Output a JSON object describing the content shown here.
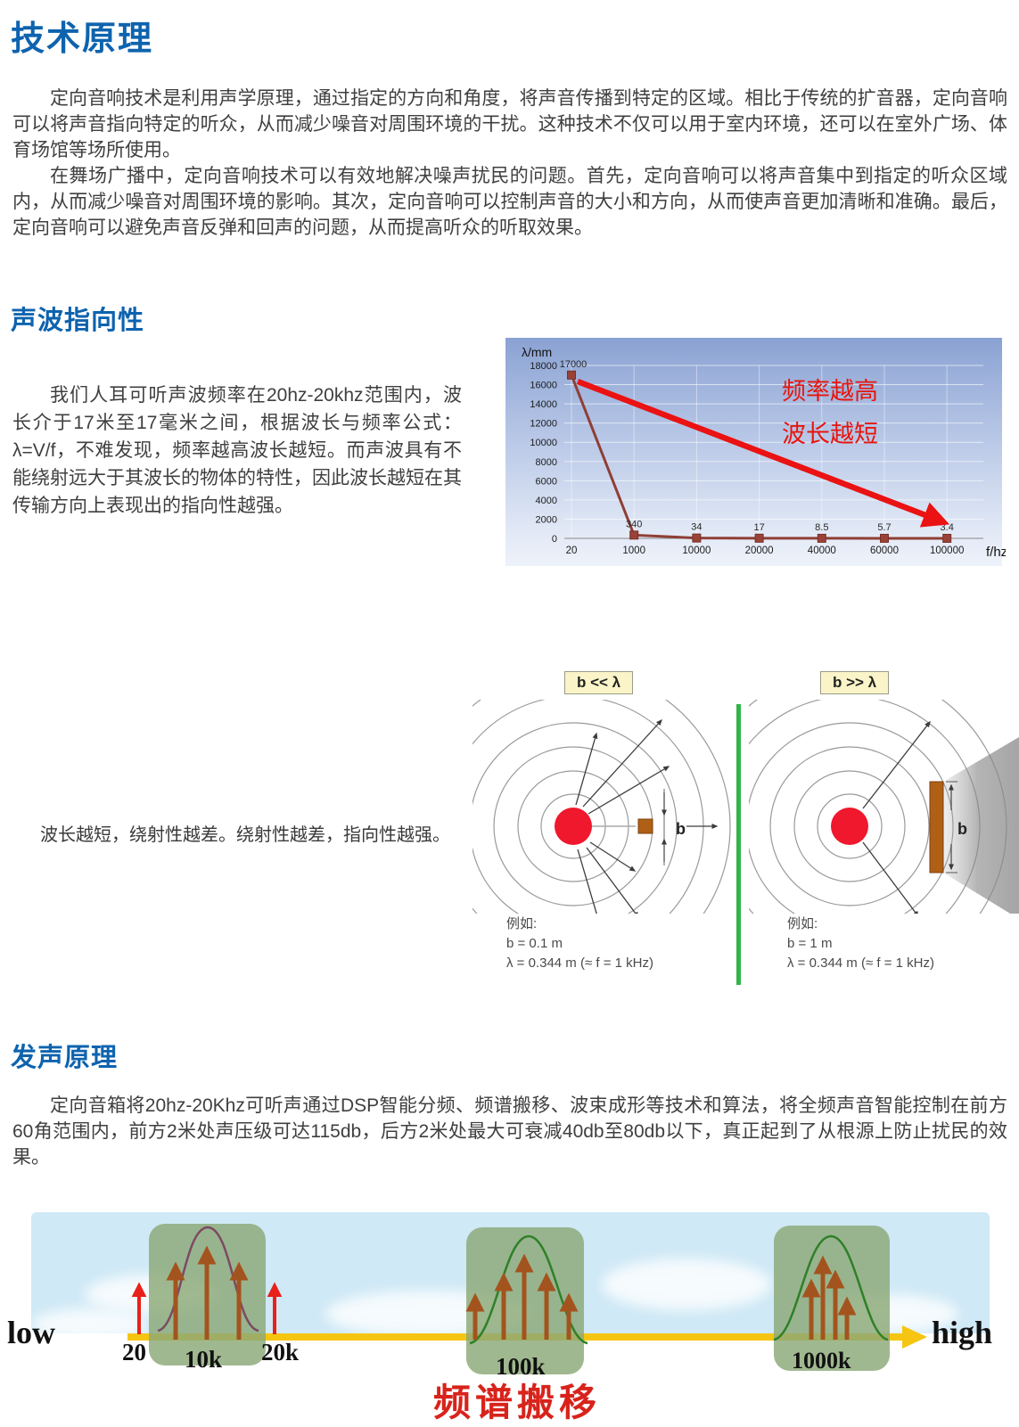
{
  "header": {
    "title": "技术原理"
  },
  "intro": {
    "p1": "定向音响技术是利用声学原理，通过指定的方向和角度，将声音传播到特定的区域。相比于传统的扩音器，定向音响可以将声音指向特定的听众，从而减少噪音对周围环境的干扰。这种技术不仅可以用于室内环境，还可以在室外广场、体育场馆等场所使用。",
    "p2": "在舞场广播中，定向音响技术可以有效地解决噪声扰民的问题。首先，定向音响可以将声音集中到指定的听众区域内，从而减少噪音对周围环境的影响。其次，定向音响可以控制声音的大小和方向，从而使声音更加清晰和准确。最后，定向音响可以避免声音反弹和回声的问题，从而提高听众的听取效果。"
  },
  "wave_section": {
    "title": "声波指向性",
    "body": "我们人耳可听声波频率在20hz-20khz范围内，波长介于17米至17毫米之间，根据波长与频率公式：λ=V/f，不难发现，频率越高波长越短。而声波具有不能绕射远大于其波长的物体的特性，因此波长越短在其传输方向上表现出的指向性越强。",
    "caption": "波长越短，绕射性越差。绕射性越差，指向性越强。"
  },
  "chart_data": {
    "type": "line",
    "title": "",
    "ylabel": "λ/mm",
    "xlabel": "f/hz",
    "categories": [
      "20",
      "1000",
      "10000",
      "20000",
      "40000",
      "60000",
      "100000"
    ],
    "values": [
      17000,
      340,
      34,
      17,
      8.5,
      5.7,
      3.4
    ],
    "point_labels": [
      "17000",
      "340",
      "34",
      "17",
      "8.5",
      "5.7",
      "3.4"
    ],
    "ylim": [
      0,
      18000
    ],
    "ytick_step": 2000,
    "grid": true,
    "annotations": [
      "频率越高",
      "波长越短"
    ],
    "line_color": "#8f3f36",
    "annotation_color": "#e8150d"
  },
  "diffraction": {
    "b_symbol": "b",
    "left": {
      "label": "b << λ",
      "example_title": "例如:",
      "b_value": "b = 0.1 m",
      "lambda_value": "λ = 0.344 m (≈ f = 1 kHz)"
    },
    "right": {
      "label": "b >> λ",
      "example_title": "例如:",
      "b_value": "b = 1 m",
      "lambda_value": "λ = 0.344 m (≈ f = 1 kHz)"
    }
  },
  "sound_section": {
    "title": "发声原理",
    "body": "定向音箱将20hz-20Khz可听声通过DSP智能分频、频谱搬移、波束成形等技术和算法，将全频声音智能控制在前方60角范围内，前方2米处声压级可达115db，后方2米处最大可衰减40db至80db以下，真正起到了从根源上防止扰民的效果。"
  },
  "spectrum": {
    "low": "low",
    "high": "high",
    "t20": "20",
    "t10k": "10k",
    "t20k": "20k",
    "t100k": "100k",
    "t1000k": "1000k",
    "caption": "频谱搬移"
  },
  "colors": {
    "accent_blue": "#0e63ae",
    "annotation_red": "#e8150d",
    "chart_line_brown": "#8f3f36",
    "axis_yellow": "#f6c512",
    "box_green": "#8ba876",
    "obstacle_brown": "#b05f17",
    "source_red": "#f0182c",
    "divider_green": "#33b34a",
    "caption_red": "#d8231b"
  }
}
